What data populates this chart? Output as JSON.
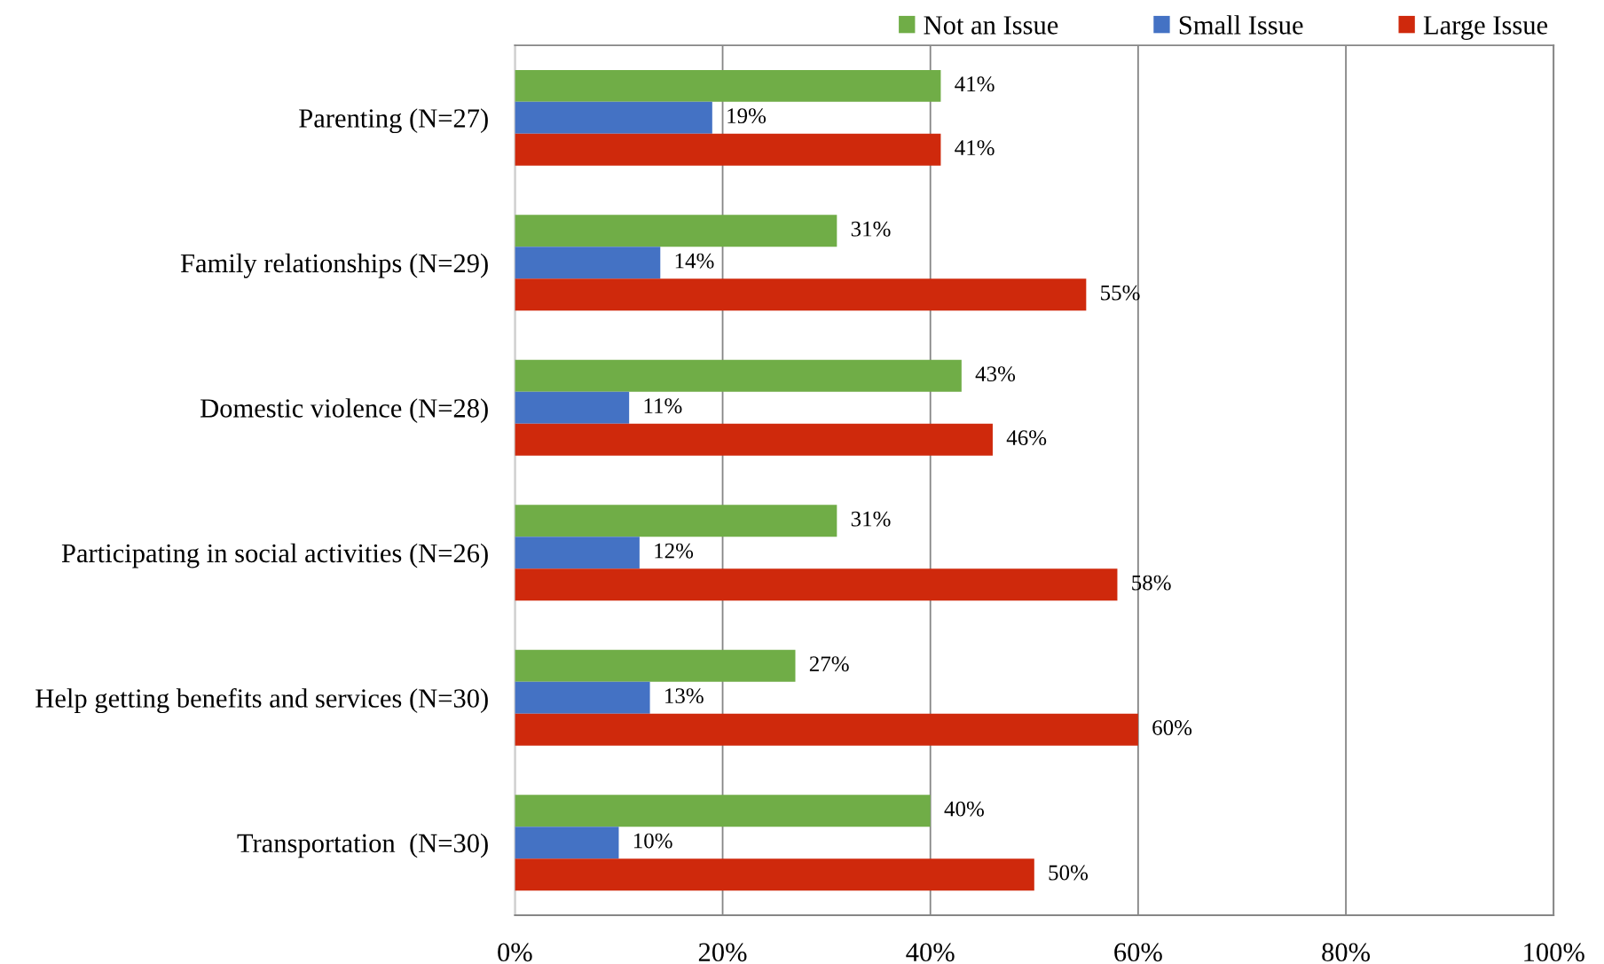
{
  "chart_data": {
    "type": "bar",
    "orientation": "horizontal",
    "categories": [
      "Parenting (N=27)",
      "Family relationships (N=29)",
      "Domestic violence (N=28)",
      "Participating in social activities (N=26)",
      "Help getting benefits and services (N=30)",
      "Transportation  (N=30)"
    ],
    "series": [
      {
        "name": "Not an Issue",
        "color": "#70ad47",
        "values": [
          41,
          31,
          43,
          31,
          27,
          40
        ],
        "value_labels": [
          "41%",
          "31%",
          "43%",
          "31%",
          "27%",
          "40%"
        ]
      },
      {
        "name": "Small Issue",
        "color": "#4472c4",
        "values": [
          19,
          14,
          11,
          12,
          13,
          10
        ],
        "value_labels": [
          "19%",
          "14%",
          "11%",
          "12%",
          "13%",
          "10%"
        ]
      },
      {
        "name": "Large Issue",
        "color": "#cf290c",
        "values": [
          41,
          55,
          46,
          58,
          60,
          50
        ],
        "value_labels": [
          "41%",
          "55%",
          "46%",
          "58%",
          "60%",
          "50%"
        ]
      }
    ],
    "xlim": [
      0,
      100
    ],
    "xticks": [
      {
        "value": 0,
        "label": "0%"
      },
      {
        "value": 20,
        "label": "20%"
      },
      {
        "value": 40,
        "label": "40%"
      },
      {
        "value": 60,
        "label": "60%"
      },
      {
        "value": 80,
        "label": "80%"
      },
      {
        "value": 100,
        "label": "100%"
      }
    ],
    "grid": "x",
    "legend": "top right"
  }
}
